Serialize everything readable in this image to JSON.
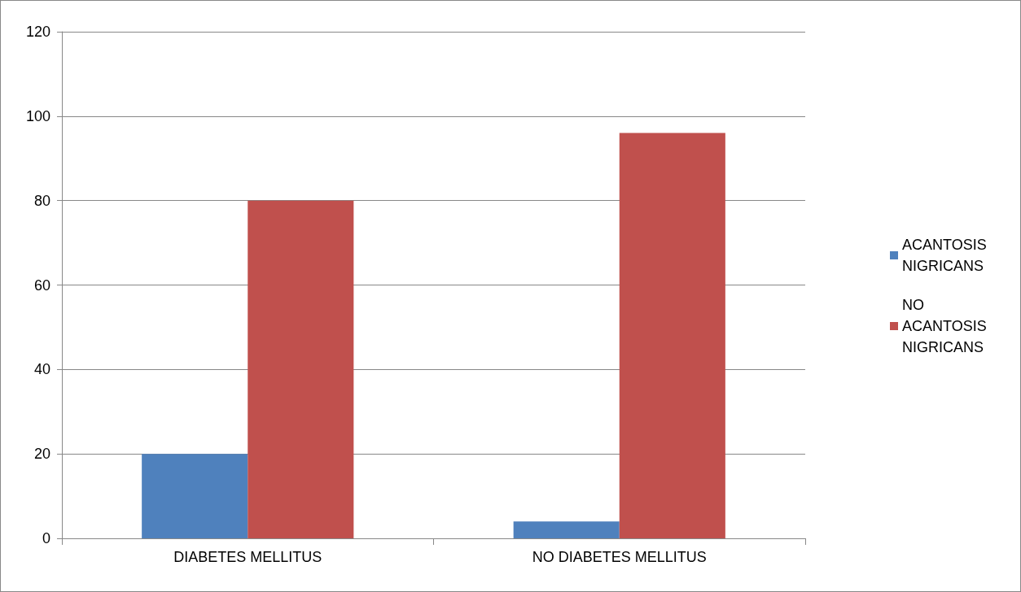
{
  "chart_data": {
    "type": "bar",
    "categories": [
      "DIABETES MELLITUS",
      "NO DIABETES MELLITUS"
    ],
    "series": [
      {
        "name": "ACANTOSIS NIGRICANS",
        "color": "#4f81bd",
        "values": [
          20,
          4
        ]
      },
      {
        "name": "NO ACANTOSIS NIGRICANS",
        "color": "#c0504d",
        "values": [
          80,
          96
        ]
      }
    ],
    "ylim": [
      0,
      120
    ],
    "yticks": [
      0,
      20,
      40,
      60,
      80,
      100,
      120
    ],
    "grid": "y",
    "legend": "right"
  }
}
